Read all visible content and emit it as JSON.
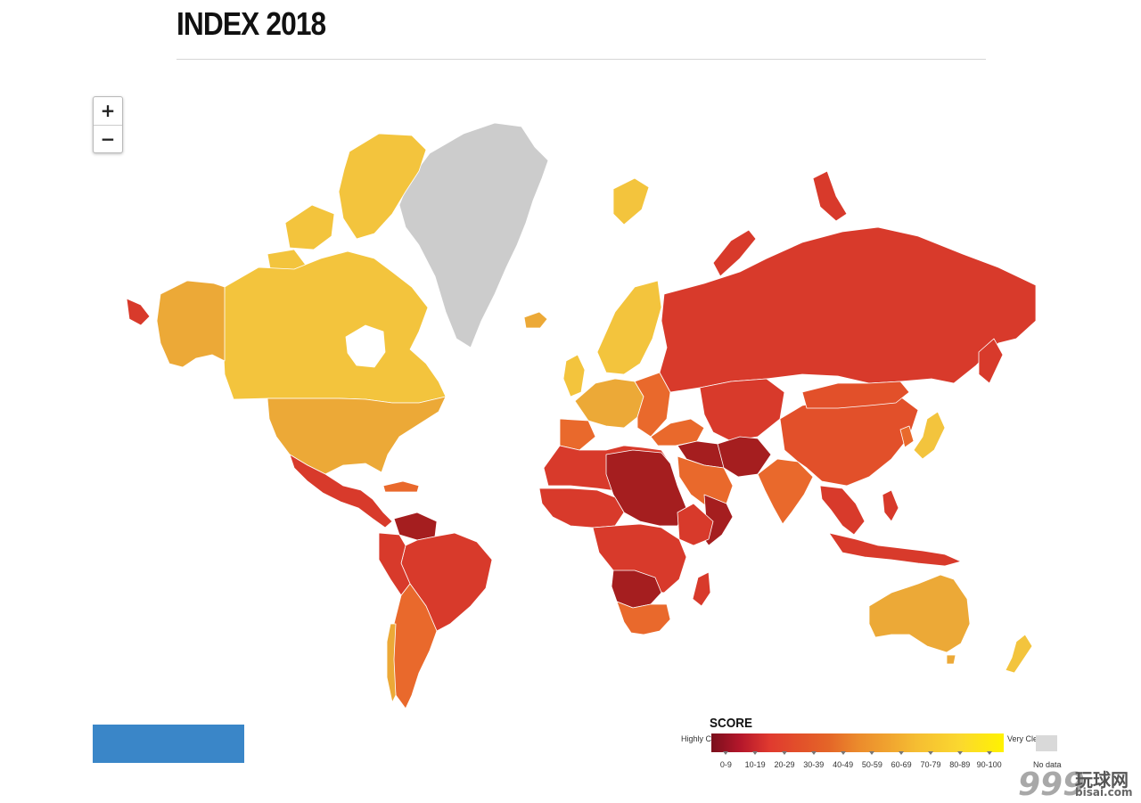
{
  "header": {
    "title": "INDEX 2018"
  },
  "zoom": {
    "in_label": "+",
    "out_label": "−"
  },
  "map": {
    "fill_colors": {
      "no_data": "#cccccc",
      "very_clean": "#f3c43d",
      "clean": "#eca937",
      "mid": "#e9692c",
      "corrupt": "#d83a2b",
      "highly_corrupt": "#a51e1f"
    }
  },
  "legend": {
    "title": "SCORE",
    "low_label": "Highly Corrupt",
    "high_label": "Very Clean",
    "ranges": [
      "0-9",
      "10-19",
      "20-29",
      "30-39",
      "40-49",
      "50-59",
      "60-69",
      "70-79",
      "80-89",
      "90-100"
    ],
    "no_data_label": "No data"
  },
  "watermark": {
    "number": "999",
    "chinese": "玩球网",
    "site": "bisai.com"
  }
}
